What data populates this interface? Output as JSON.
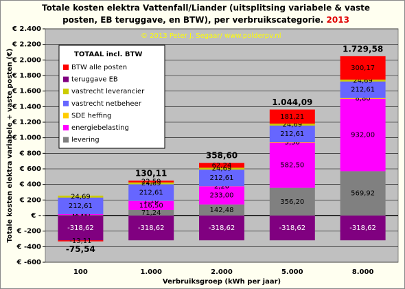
{
  "chart_data": {
    "type": "stacked_bar",
    "title": "Totale kosten elektra Vattenfall/Liander  (uitsplitsing variabele & vaste",
    "title_line2": "posten, EB teruggave, en BTW), per verbruikscategorie.",
    "title_year": "2013",
    "annotation": "© 2013 Peter J. Segaar/ www.polderpv.nl",
    "legend_title": "TOTAAL incl. BTW",
    "ylabel": "Totale kosten elektra variabele + vaste posten (€)",
    "xlabel": "Verbruiksgroep (kWh per jaar)",
    "categories": [
      "100",
      "1.000",
      "2.000",
      "5.000",
      "8.000"
    ],
    "series": [
      {
        "name": "BTW alle posten",
        "color": "#ff0000",
        "values": [
          -13.11,
          22.59,
          62.24,
          181.21,
          300.17
        ],
        "value_labels": [
          "-13,11",
          "22,59",
          "62,24",
          "181,21",
          "300,17"
        ]
      },
      {
        "name": "teruggave EB",
        "color": "#800080",
        "values": [
          -318.62,
          -318.62,
          -318.62,
          -318.62,
          -318.62
        ],
        "value_labels": [
          "-318,62",
          "-318,62",
          "-318,62",
          "-318,62",
          "-318,62"
        ]
      },
      {
        "name": "vastrecht leverancier",
        "color": "#cccc00",
        "values": [
          24.69,
          24.69,
          24.69,
          24.69,
          24.69
        ],
        "value_labels": [
          "24,69",
          "24,69",
          "24,69",
          "24,69",
          "24,69"
        ]
      },
      {
        "name": "vastrecht netbeheer",
        "color": "#6666ff",
        "values": [
          212.61,
          212.61,
          212.61,
          212.61,
          212.61
        ],
        "value_labels": [
          "212,61",
          "212,61",
          "212,61",
          "212,61",
          "212,61"
        ]
      },
      {
        "name": "SDE heffing",
        "color": "#ffcc00",
        "values": [
          0.11,
          1.1,
          2.2,
          5.5,
          8.8
        ],
        "value_labels": [
          "0,11",
          "1,10",
          "2,20",
          "5,50",
          "8,80"
        ]
      },
      {
        "name": "energiebelasting",
        "color": "#ff00ff",
        "values": [
          11.65,
          116.5,
          233.0,
          582.5,
          932.0
        ],
        "value_labels": [
          "11,65",
          "116,50",
          "233,00",
          "582,50",
          "932,00"
        ]
      },
      {
        "name": "levering",
        "color": "#808080",
        "values": [
          7.12,
          71.24,
          142.48,
          356.2,
          569.92
        ],
        "value_labels": [
          "7,12",
          "71,24",
          "142,48",
          "356,20",
          "569,92"
        ]
      }
    ],
    "totals": {
      "values": [
        -75.54,
        130.11,
        358.6,
        1044.09,
        1729.58
      ],
      "value_labels": [
        "-75,54",
        "130,11",
        "358,60",
        "1.044,09",
        "1.729,58"
      ]
    },
    "ylim": [
      -600,
      2400
    ],
    "yticks": [
      {
        "value": -600,
        "label": "€ -600"
      },
      {
        "value": -400,
        "label": "€ -400"
      },
      {
        "value": -200,
        "label": "€ -200"
      },
      {
        "value": 0,
        "label": "€ -"
      },
      {
        "value": 200,
        "label": "€ 200"
      },
      {
        "value": 400,
        "label": "€ 400"
      },
      {
        "value": 600,
        "label": "€ 600"
      },
      {
        "value": 800,
        "label": "€ 800"
      },
      {
        "value": 1000,
        "label": "€ 1.000"
      },
      {
        "value": 1200,
        "label": "€ 1.200"
      },
      {
        "value": 1400,
        "label": "€ 1.400"
      },
      {
        "value": 1600,
        "label": "€ 1.600"
      },
      {
        "value": 1800,
        "label": "€ 1.800"
      },
      {
        "value": 2000,
        "label": "€ 2.000"
      },
      {
        "value": 2200,
        "label": "€ 2.200"
      },
      {
        "value": 2400,
        "label": "€ 2.400"
      }
    ],
    "grid": true,
    "plot_background": "#c0c0c0"
  }
}
